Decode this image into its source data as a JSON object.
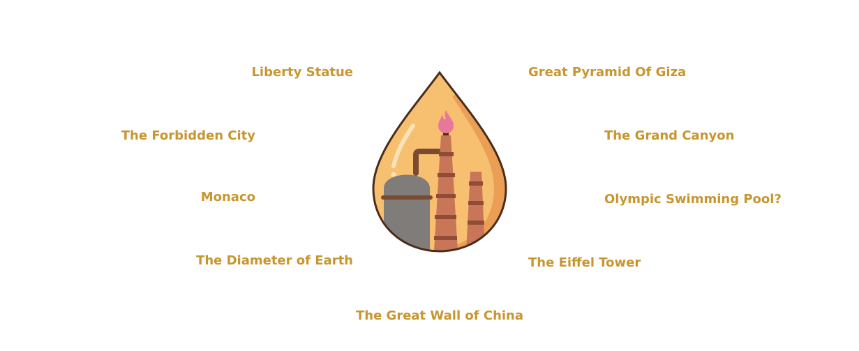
{
  "accent_color": "#C7962F",
  "illustration": {
    "name": "oil-drop-refinery-icon",
    "colors": {
      "drop_fill": "#F7BF70",
      "drop_shade": "#EA9F55",
      "outline": "#4A2C1B",
      "chimney": "#C97558",
      "chimney_stripe": "#8F4C36",
      "tank": "#7F7C79",
      "pipe": "#7A4A33",
      "flame": "#E7789B"
    }
  },
  "labels": {
    "liberty_statue": "Liberty Statue",
    "great_pyramid": "Great Pyramid Of Giza",
    "forbidden_city": "The Forbidden City",
    "grand_canyon": "The Grand Canyon",
    "monaco": "Monaco",
    "swimming_pool": "Olympic Swimming Pool?",
    "diameter_earth": "The Diameter of Earth",
    "eiffel_tower": "The Eiffel Tower",
    "great_wall": "The Great Wall of China"
  }
}
